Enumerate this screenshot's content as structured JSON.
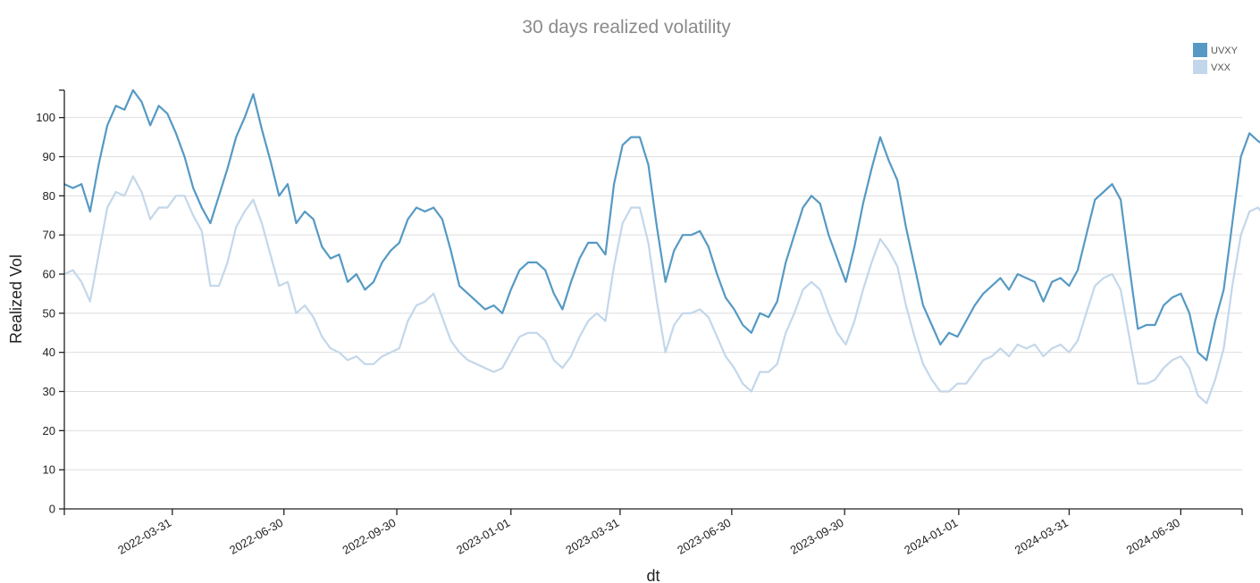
{
  "chart_data": {
    "type": "line",
    "title": "30 days realized volatility",
    "xlabel": "dt",
    "ylabel": "Realized Vol",
    "x_range": [
      "2022-01-02",
      "2024-08-19"
    ],
    "ylim": [
      0,
      107
    ],
    "yticks": [
      0,
      10,
      20,
      30,
      40,
      50,
      60,
      70,
      80,
      90,
      100
    ],
    "xticks": [
      "2022-03-31",
      "2022-06-30",
      "2022-09-30",
      "2023-01-01",
      "2023-03-31",
      "2023-06-30",
      "2023-09-30",
      "2024-01-01",
      "2024-03-31",
      "2024-06-30"
    ],
    "grid": "horizontal",
    "legend_position": "top-right",
    "series": [
      {
        "name": "UVXY",
        "color": "#5599c4",
        "points": [
          [
            "2022-01-02",
            83
          ],
          [
            "2022-01-09",
            82
          ],
          [
            "2022-01-16",
            83
          ],
          [
            "2022-01-23",
            76
          ],
          [
            "2022-01-30",
            88
          ],
          [
            "2022-02-06",
            98
          ],
          [
            "2022-02-13",
            103
          ],
          [
            "2022-02-20",
            102
          ],
          [
            "2022-02-27",
            107
          ],
          [
            "2022-03-06",
            104
          ],
          [
            "2022-03-13",
            98
          ],
          [
            "2022-03-20",
            103
          ],
          [
            "2022-03-27",
            101
          ],
          [
            "2022-04-03",
            96
          ],
          [
            "2022-04-10",
            90
          ],
          [
            "2022-04-17",
            82
          ],
          [
            "2022-04-24",
            77
          ],
          [
            "2022-05-01",
            73
          ],
          [
            "2022-05-08",
            80
          ],
          [
            "2022-05-15",
            87
          ],
          [
            "2022-05-22",
            95
          ],
          [
            "2022-05-29",
            100
          ],
          [
            "2022-06-05",
            106
          ],
          [
            "2022-06-12",
            97
          ],
          [
            "2022-06-19",
            89
          ],
          [
            "2022-06-26",
            80
          ],
          [
            "2022-07-03",
            83
          ],
          [
            "2022-07-10",
            73
          ],
          [
            "2022-07-17",
            76
          ],
          [
            "2022-07-24",
            74
          ],
          [
            "2022-07-31",
            67
          ],
          [
            "2022-08-07",
            64
          ],
          [
            "2022-08-14",
            65
          ],
          [
            "2022-08-21",
            58
          ],
          [
            "2022-08-28",
            60
          ],
          [
            "2022-09-04",
            56
          ],
          [
            "2022-09-11",
            58
          ],
          [
            "2022-09-18",
            63
          ],
          [
            "2022-09-25",
            66
          ],
          [
            "2022-10-02",
            68
          ],
          [
            "2022-10-09",
            74
          ],
          [
            "2022-10-16",
            77
          ],
          [
            "2022-10-23",
            76
          ],
          [
            "2022-10-30",
            77
          ],
          [
            "2022-11-06",
            74
          ],
          [
            "2022-11-13",
            66
          ],
          [
            "2022-11-20",
            57
          ],
          [
            "2022-11-27",
            55
          ],
          [
            "2022-12-04",
            53
          ],
          [
            "2022-12-11",
            51
          ],
          [
            "2022-12-18",
            52
          ],
          [
            "2022-12-25",
            50
          ],
          [
            "2023-01-01",
            56
          ],
          [
            "2023-01-08",
            61
          ],
          [
            "2023-01-15",
            63
          ],
          [
            "2023-01-22",
            63
          ],
          [
            "2023-01-29",
            61
          ],
          [
            "2023-02-05",
            55
          ],
          [
            "2023-02-12",
            51
          ],
          [
            "2023-02-19",
            58
          ],
          [
            "2023-02-26",
            64
          ],
          [
            "2023-03-05",
            68
          ],
          [
            "2023-03-12",
            68
          ],
          [
            "2023-03-19",
            65
          ],
          [
            "2023-03-26",
            83
          ],
          [
            "2023-04-02",
            93
          ],
          [
            "2023-04-09",
            95
          ],
          [
            "2023-04-16",
            95
          ],
          [
            "2023-04-23",
            88
          ],
          [
            "2023-04-30",
            72
          ],
          [
            "2023-05-07",
            58
          ],
          [
            "2023-05-14",
            66
          ],
          [
            "2023-05-21",
            70
          ],
          [
            "2023-05-28",
            70
          ],
          [
            "2023-06-04",
            71
          ],
          [
            "2023-06-11",
            67
          ],
          [
            "2023-06-18",
            60
          ],
          [
            "2023-06-25",
            54
          ],
          [
            "2023-07-02",
            51
          ],
          [
            "2023-07-09",
            47
          ],
          [
            "2023-07-16",
            45
          ],
          [
            "2023-07-23",
            50
          ],
          [
            "2023-07-30",
            49
          ],
          [
            "2023-08-06",
            53
          ],
          [
            "2023-08-13",
            63
          ],
          [
            "2023-08-20",
            70
          ],
          [
            "2023-08-27",
            77
          ],
          [
            "2023-09-03",
            80
          ],
          [
            "2023-09-10",
            78
          ],
          [
            "2023-09-17",
            70
          ],
          [
            "2023-09-24",
            64
          ],
          [
            "2023-10-01",
            58
          ],
          [
            "2023-10-08",
            67
          ],
          [
            "2023-10-15",
            78
          ],
          [
            "2023-10-22",
            87
          ],
          [
            "2023-10-29",
            95
          ],
          [
            "2023-11-05",
            89
          ],
          [
            "2023-11-12",
            84
          ],
          [
            "2023-11-19",
            72
          ],
          [
            "2023-11-26",
            62
          ],
          [
            "2023-12-03",
            52
          ],
          [
            "2023-12-10",
            47
          ],
          [
            "2023-12-17",
            42
          ],
          [
            "2023-12-24",
            45
          ],
          [
            "2023-12-31",
            44
          ],
          [
            "2024-01-07",
            48
          ],
          [
            "2024-01-14",
            52
          ],
          [
            "2024-01-21",
            55
          ],
          [
            "2024-01-28",
            57
          ],
          [
            "2024-02-04",
            59
          ],
          [
            "2024-02-11",
            56
          ],
          [
            "2024-02-18",
            60
          ],
          [
            "2024-02-25",
            59
          ],
          [
            "2024-03-03",
            58
          ],
          [
            "2024-03-10",
            53
          ],
          [
            "2024-03-17",
            58
          ],
          [
            "2024-03-24",
            59
          ],
          [
            "2024-03-31",
            57
          ],
          [
            "2024-04-07",
            61
          ],
          [
            "2024-04-14",
            70
          ],
          [
            "2024-04-21",
            79
          ],
          [
            "2024-04-28",
            81
          ],
          [
            "2024-05-05",
            83
          ],
          [
            "2024-05-12",
            79
          ],
          [
            "2024-05-19",
            62
          ],
          [
            "2024-05-26",
            46
          ],
          [
            "2024-06-02",
            47
          ],
          [
            "2024-06-09",
            47
          ],
          [
            "2024-06-16",
            52
          ],
          [
            "2024-06-23",
            54
          ],
          [
            "2024-06-30",
            55
          ],
          [
            "2024-07-07",
            50
          ],
          [
            "2024-07-14",
            40
          ],
          [
            "2024-07-21",
            38
          ],
          [
            "2024-07-28",
            48
          ],
          [
            "2024-08-04",
            56
          ],
          [
            "2024-08-11",
            73
          ],
          [
            "2024-08-18",
            90
          ],
          [
            "2024-08-25",
            96
          ],
          [
            "2024-09-01",
            94
          ],
          [
            "2024-09-06",
            93
          ]
        ]
      },
      {
        "name": "VXX",
        "color": "#c3d7ea",
        "points": [
          [
            "2022-01-02",
            60
          ],
          [
            "2022-01-09",
            61
          ],
          [
            "2022-01-16",
            58
          ],
          [
            "2022-01-23",
            53
          ],
          [
            "2022-01-30",
            65
          ],
          [
            "2022-02-06",
            77
          ],
          [
            "2022-02-13",
            81
          ],
          [
            "2022-02-20",
            80
          ],
          [
            "2022-02-27",
            85
          ],
          [
            "2022-03-06",
            81
          ],
          [
            "2022-03-13",
            74
          ],
          [
            "2022-03-20",
            77
          ],
          [
            "2022-03-27",
            77
          ],
          [
            "2022-04-03",
            80
          ],
          [
            "2022-04-10",
            80
          ],
          [
            "2022-04-17",
            75
          ],
          [
            "2022-04-24",
            71
          ],
          [
            "2022-05-01",
            57
          ],
          [
            "2022-05-08",
            57
          ],
          [
            "2022-05-15",
            63
          ],
          [
            "2022-05-22",
            72
          ],
          [
            "2022-05-29",
            76
          ],
          [
            "2022-06-05",
            79
          ],
          [
            "2022-06-12",
            73
          ],
          [
            "2022-06-19",
            65
          ],
          [
            "2022-06-26",
            57
          ],
          [
            "2022-07-03",
            58
          ],
          [
            "2022-07-10",
            50
          ],
          [
            "2022-07-17",
            52
          ],
          [
            "2022-07-24",
            49
          ],
          [
            "2022-07-31",
            44
          ],
          [
            "2022-08-07",
            41
          ],
          [
            "2022-08-14",
            40
          ],
          [
            "2022-08-21",
            38
          ],
          [
            "2022-08-28",
            39
          ],
          [
            "2022-09-04",
            37
          ],
          [
            "2022-09-11",
            37
          ],
          [
            "2022-09-18",
            39
          ],
          [
            "2022-09-25",
            40
          ],
          [
            "2022-10-02",
            41
          ],
          [
            "2022-10-09",
            48
          ],
          [
            "2022-10-16",
            52
          ],
          [
            "2022-10-23",
            53
          ],
          [
            "2022-10-30",
            55
          ],
          [
            "2022-11-06",
            49
          ],
          [
            "2022-11-13",
            43
          ],
          [
            "2022-11-20",
            40
          ],
          [
            "2022-11-27",
            38
          ],
          [
            "2022-12-04",
            37
          ],
          [
            "2022-12-11",
            36
          ],
          [
            "2022-12-18",
            35
          ],
          [
            "2022-12-25",
            36
          ],
          [
            "2023-01-01",
            40
          ],
          [
            "2023-01-08",
            44
          ],
          [
            "2023-01-15",
            45
          ],
          [
            "2023-01-22",
            45
          ],
          [
            "2023-01-29",
            43
          ],
          [
            "2023-02-05",
            38
          ],
          [
            "2023-02-12",
            36
          ],
          [
            "2023-02-19",
            39
          ],
          [
            "2023-02-26",
            44
          ],
          [
            "2023-03-05",
            48
          ],
          [
            "2023-03-12",
            50
          ],
          [
            "2023-03-19",
            48
          ],
          [
            "2023-03-26",
            62
          ],
          [
            "2023-04-02",
            73
          ],
          [
            "2023-04-09",
            77
          ],
          [
            "2023-04-16",
            77
          ],
          [
            "2023-04-23",
            68
          ],
          [
            "2023-04-30",
            53
          ],
          [
            "2023-05-07",
            40
          ],
          [
            "2023-05-14",
            47
          ],
          [
            "2023-05-21",
            50
          ],
          [
            "2023-05-28",
            50
          ],
          [
            "2023-06-04",
            51
          ],
          [
            "2023-06-11",
            49
          ],
          [
            "2023-06-18",
            44
          ],
          [
            "2023-06-25",
            39
          ],
          [
            "2023-07-02",
            36
          ],
          [
            "2023-07-09",
            32
          ],
          [
            "2023-07-16",
            30
          ],
          [
            "2023-07-23",
            35
          ],
          [
            "2023-07-30",
            35
          ],
          [
            "2023-08-06",
            37
          ],
          [
            "2023-08-13",
            45
          ],
          [
            "2023-08-20",
            50
          ],
          [
            "2023-08-27",
            56
          ],
          [
            "2023-09-03",
            58
          ],
          [
            "2023-09-10",
            56
          ],
          [
            "2023-09-17",
            50
          ],
          [
            "2023-09-24",
            45
          ],
          [
            "2023-10-01",
            42
          ],
          [
            "2023-10-08",
            48
          ],
          [
            "2023-10-15",
            56
          ],
          [
            "2023-10-22",
            63
          ],
          [
            "2023-10-29",
            69
          ],
          [
            "2023-11-05",
            66
          ],
          [
            "2023-11-12",
            62
          ],
          [
            "2023-11-19",
            52
          ],
          [
            "2023-11-26",
            44
          ],
          [
            "2023-12-03",
            37
          ],
          [
            "2023-12-10",
            33
          ],
          [
            "2023-12-17",
            30
          ],
          [
            "2023-12-24",
            30
          ],
          [
            "2023-12-31",
            32
          ],
          [
            "2024-01-07",
            32
          ],
          [
            "2024-01-14",
            35
          ],
          [
            "2024-01-21",
            38
          ],
          [
            "2024-01-28",
            39
          ],
          [
            "2024-02-04",
            41
          ],
          [
            "2024-02-11",
            39
          ],
          [
            "2024-02-18",
            42
          ],
          [
            "2024-02-25",
            41
          ],
          [
            "2024-03-03",
            42
          ],
          [
            "2024-03-10",
            39
          ],
          [
            "2024-03-17",
            41
          ],
          [
            "2024-03-24",
            42
          ],
          [
            "2024-03-31",
            40
          ],
          [
            "2024-04-07",
            43
          ],
          [
            "2024-04-14",
            50
          ],
          [
            "2024-04-21",
            57
          ],
          [
            "2024-04-28",
            59
          ],
          [
            "2024-05-05",
            60
          ],
          [
            "2024-05-12",
            56
          ],
          [
            "2024-05-19",
            44
          ],
          [
            "2024-05-26",
            32
          ],
          [
            "2024-06-02",
            32
          ],
          [
            "2024-06-09",
            33
          ],
          [
            "2024-06-16",
            36
          ],
          [
            "2024-06-23",
            38
          ],
          [
            "2024-06-30",
            39
          ],
          [
            "2024-07-07",
            36
          ],
          [
            "2024-07-14",
            29
          ],
          [
            "2024-07-21",
            27
          ],
          [
            "2024-07-28",
            33
          ],
          [
            "2024-08-04",
            41
          ],
          [
            "2024-08-11",
            57
          ],
          [
            "2024-08-18",
            70
          ],
          [
            "2024-08-25",
            76
          ],
          [
            "2024-09-01",
            77
          ],
          [
            "2024-09-06",
            75
          ]
        ]
      }
    ]
  }
}
